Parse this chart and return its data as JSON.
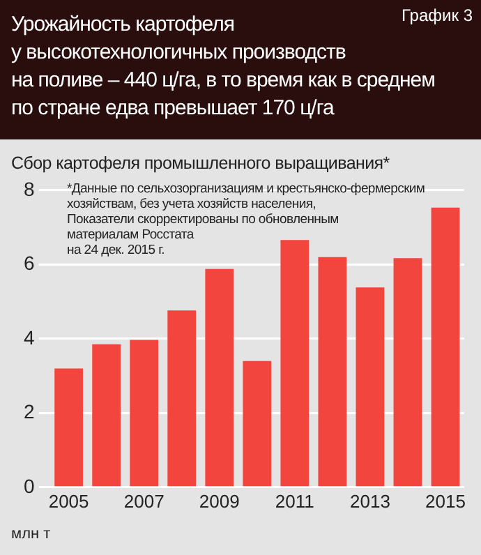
{
  "chart_data": {
    "type": "bar",
    "title": "Урожайность картофеля\nу высокотехнологичных производств\nна поливе – 440 ц/га, в то время как в среднем\nпо стране едва превышает 170 ц/га",
    "subtitle": "Сбор картофеля промышленного выращивания*",
    "ylabel": "млн т",
    "annotations": [
      "График 3",
      "*Данные по сельхозорганизациям и крестьянско-фермерским\nхозяйствам, без учета хозяйств населения,\nПоказатели скорректированы по обновленным\nматериалам Росстата\nна 24 дек. 2015 г."
    ],
    "categories": [
      "2005",
      null,
      "2007",
      null,
      "2009",
      null,
      "2011",
      null,
      "2013",
      null,
      "2015"
    ],
    "values": [
      3.2,
      3.85,
      3.97,
      4.76,
      5.88,
      3.4,
      6.66,
      6.2,
      5.38,
      6.17,
      7.53
    ],
    "color": "#f2453d",
    "ylim": [
      0,
      8
    ],
    "yticks": [
      0,
      2,
      4,
      6,
      8
    ],
    "grid": "y",
    "legend": false
  }
}
